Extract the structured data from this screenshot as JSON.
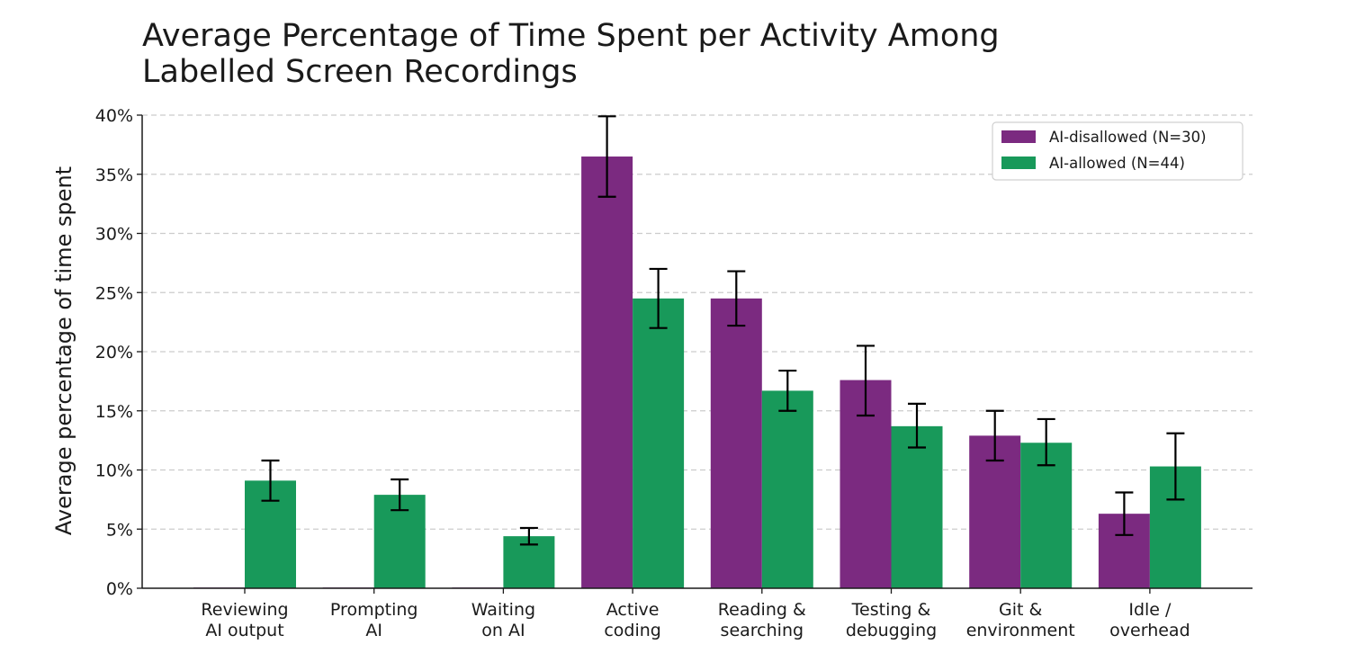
{
  "chart_data": {
    "type": "bar",
    "title_lines": [
      "Average Percentage of Time Spent per Activity Among",
      "Labelled Screen Recordings"
    ],
    "xlabel": "",
    "ylabel": "Average percentage of time spent",
    "ylim": [
      0,
      40
    ],
    "yticks": [
      0,
      5,
      10,
      15,
      20,
      25,
      30,
      35,
      40
    ],
    "ytick_labels": [
      "0%",
      "5%",
      "10%",
      "15%",
      "20%",
      "25%",
      "30%",
      "35%",
      "40%"
    ],
    "grid": "horizontal dashed",
    "legend_position": "top-right",
    "categories": [
      [
        "Reviewing",
        "AI output"
      ],
      [
        "Prompting",
        "AI"
      ],
      [
        "Waiting",
        "on AI"
      ],
      [
        "Active",
        "coding"
      ],
      [
        "Reading &",
        "searching"
      ],
      [
        "Testing &",
        "debugging"
      ],
      [
        "Git &",
        "environment"
      ],
      [
        "Idle /",
        "overhead"
      ]
    ],
    "series": [
      {
        "name": "AI-disallowed (N=30)",
        "color": "#7b2a80",
        "values": [
          0,
          0,
          0,
          36.5,
          24.5,
          17.6,
          12.9,
          6.3
        ],
        "err_low": [
          0,
          0,
          0,
          33.1,
          22.2,
          14.6,
          10.8,
          4.5
        ],
        "err_high": [
          0,
          0,
          0,
          39.9,
          26.8,
          20.5,
          15.0,
          8.1
        ]
      },
      {
        "name": "AI-allowed (N=44)",
        "color": "#18995a",
        "values": [
          9.1,
          7.9,
          4.4,
          24.5,
          16.7,
          13.7,
          12.3,
          10.3
        ],
        "err_low": [
          7.4,
          6.6,
          3.7,
          22.0,
          15.0,
          11.9,
          10.4,
          7.5
        ],
        "err_high": [
          10.8,
          9.2,
          5.1,
          27.0,
          18.4,
          15.6,
          14.3,
          13.1
        ]
      }
    ]
  }
}
